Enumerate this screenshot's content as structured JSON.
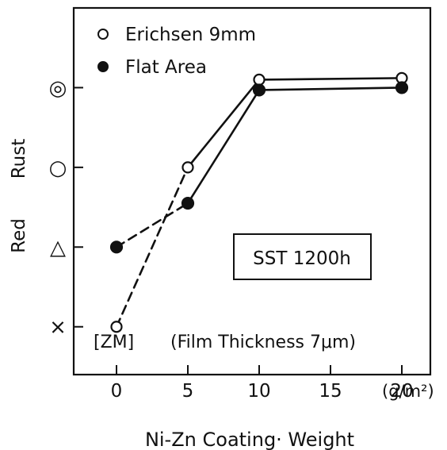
{
  "chart_data": {
    "type": "line",
    "xlabel": "Ni-Zn Coating· Weight",
    "x_unit": "(g/m²)",
    "ylabel_left": "Red",
    "ylabel_right": "Rust",
    "x_ticks": [
      0,
      5,
      10,
      15,
      20
    ],
    "x_tick_labels": [
      "0",
      "5",
      "10",
      "15",
      "20"
    ],
    "xlim": [
      -3,
      22
    ],
    "y_levels": [
      {
        "symbol": "×",
        "value": 0
      },
      {
        "symbol": "△",
        "value": 1
      },
      {
        "symbol": "○",
        "value": 2
      },
      {
        "symbol": "◎",
        "value": 3
      }
    ],
    "ylim": [
      -0.6,
      4.0
    ],
    "series": [
      {
        "name": "Erichsen 9mm",
        "marker": "open-circle",
        "x": [
          0,
          5,
          10,
          20
        ],
        "y": [
          0,
          2,
          3.1,
          3.12
        ],
        "dashed_until_index": 1
      },
      {
        "name": "Flat Area",
        "marker": "filled-circle",
        "x": [
          0,
          5,
          10,
          20
        ],
        "y": [
          1,
          1.55,
          2.97,
          3.0
        ],
        "dashed_until_index": 1
      }
    ],
    "legend_position": "top-left",
    "annotations": {
      "zm_label": "[ZM]",
      "film_note": "(Film Thickness 7μm)",
      "box_label": "SST 1200h"
    }
  }
}
